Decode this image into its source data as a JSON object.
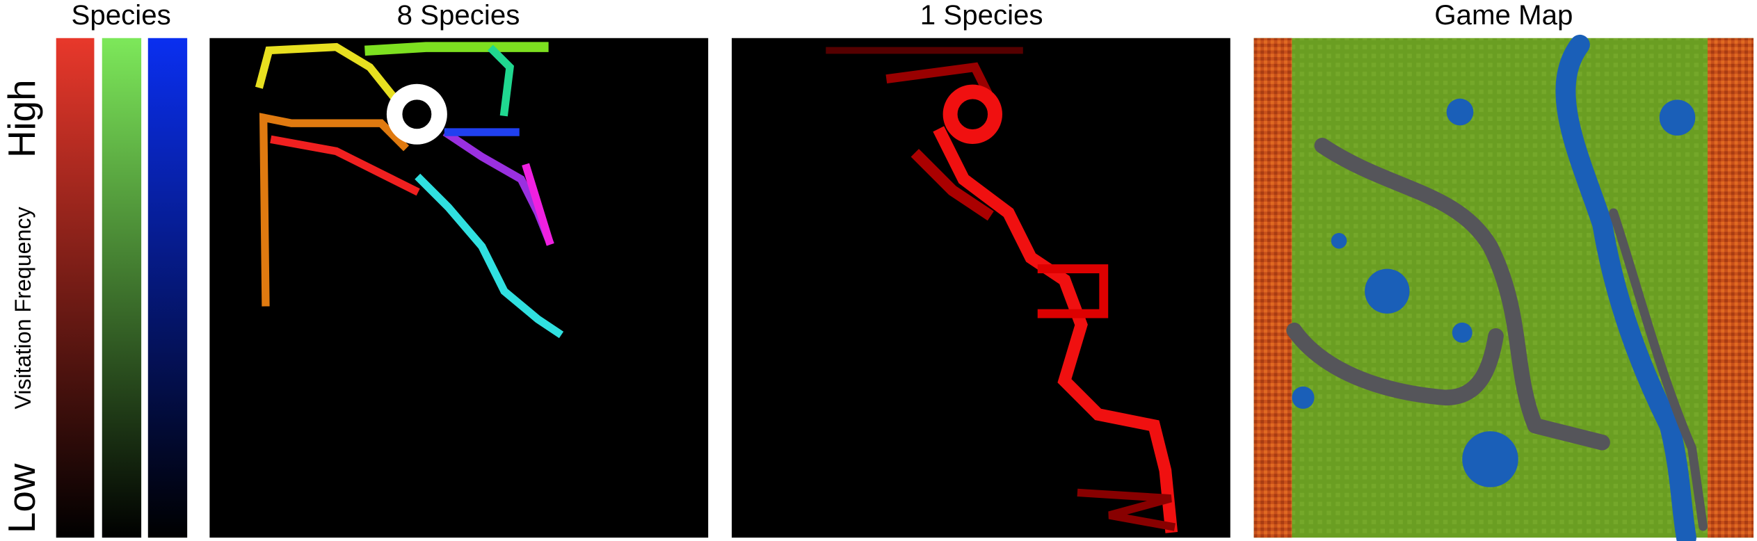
{
  "legend": {
    "title": "Species",
    "high": "High",
    "axis_label": "Visitation Frequency",
    "low": "Low"
  },
  "panels": [
    {
      "title": "8 Species"
    },
    {
      "title": "1 Species"
    },
    {
      "title": "Game Map"
    }
  ]
}
